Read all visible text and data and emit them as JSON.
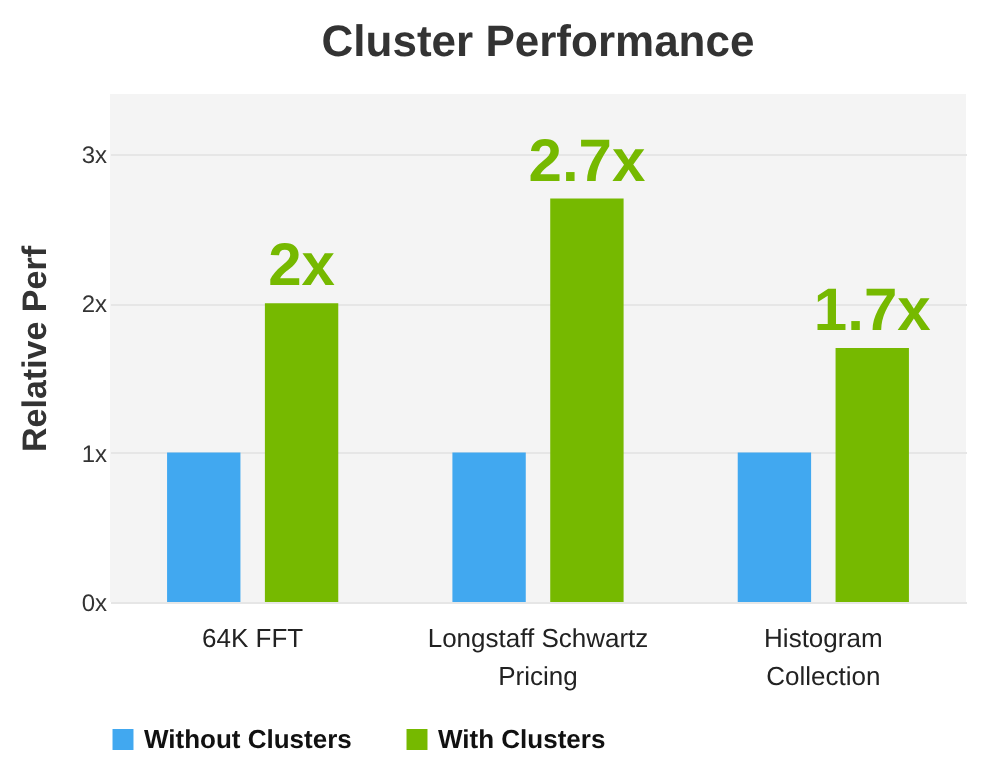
{
  "chart_data": {
    "type": "bar",
    "title": "Cluster Performance",
    "ylabel": "Relative Perf",
    "categories": [
      "64K FFT",
      "Longstaff Schwartz Pricing",
      "Histogram Collection"
    ],
    "series": [
      {
        "name": "Without Clusters",
        "color": "#41a8f0",
        "values": [
          1,
          1,
          1
        ]
      },
      {
        "name": "With Clusters",
        "color": "#76b900",
        "values": [
          2,
          2.7,
          1.7
        ],
        "value_labels": [
          "2x",
          "2.7x",
          "1.7x"
        ]
      }
    ],
    "ylim": [
      0,
      3.4
    ],
    "yticks": [
      {
        "value": 0,
        "label": "0x"
      },
      {
        "value": 1,
        "label": "1x"
      },
      {
        "value": 2,
        "label": "2x"
      },
      {
        "value": 3,
        "label": "3x"
      }
    ],
    "grid": "y",
    "legend": "bottom"
  }
}
